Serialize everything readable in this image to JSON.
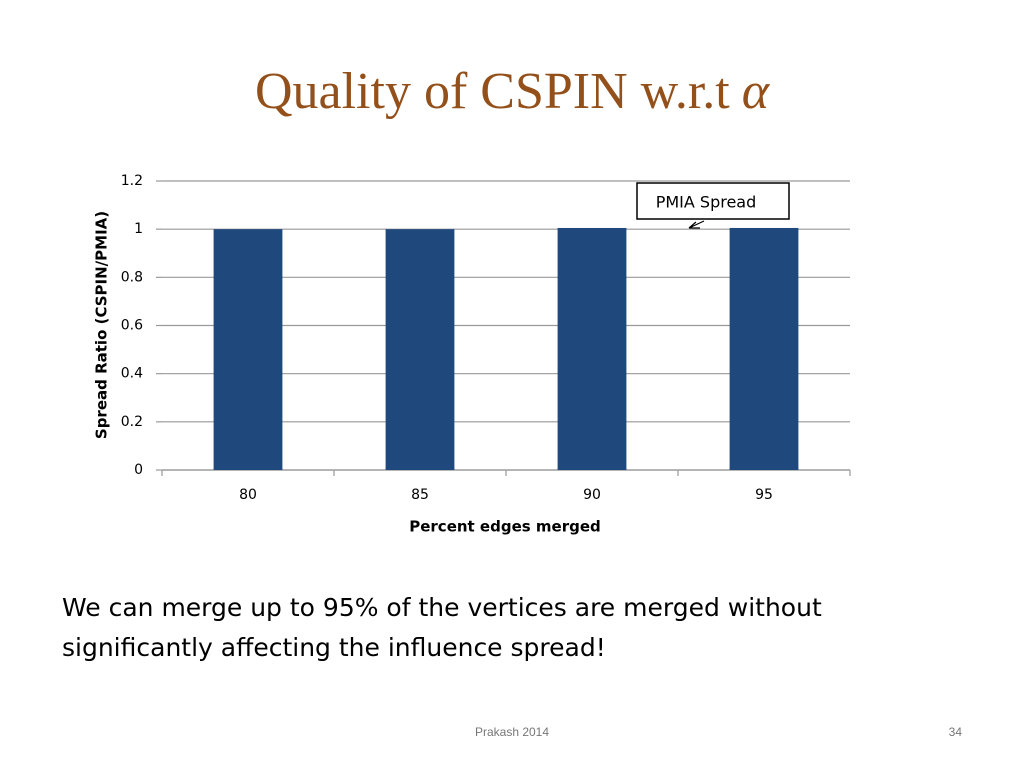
{
  "slide": {
    "title": {
      "text": "Quality of CSPIN w.r.t",
      "symbol": "α"
    },
    "body": "We can merge up to 95% of the vertices are merged without significantly affecting the influence spread!",
    "footer": "Prakash 2014",
    "page_number": "34"
  },
  "chart_data": {
    "type": "bar",
    "categories": [
      "80",
      "85",
      "90",
      "95"
    ],
    "values": [
      1,
      1,
      1.005,
      1.005
    ],
    "color": "#1f497d",
    "ylim": [
      0,
      1.2
    ],
    "yticks": [
      0,
      0.2,
      0.4,
      0.6,
      0.8,
      1,
      1.2
    ],
    "grid": true,
    "y_label": "Spread Ratio (CSPIN/PMIA)",
    "x_label": "Percent edges merged",
    "annotation": "PMIA Spread"
  }
}
